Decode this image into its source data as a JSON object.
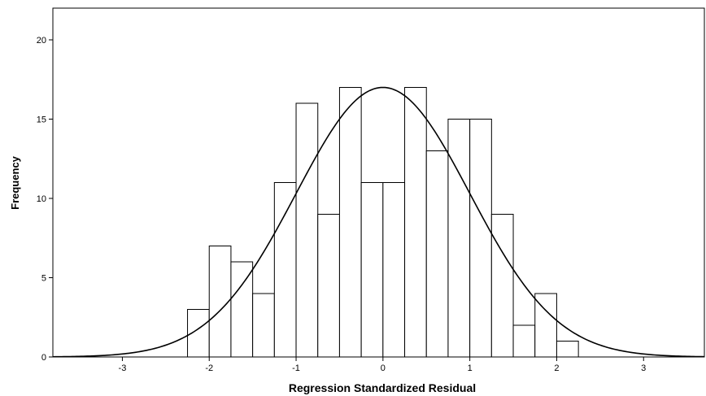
{
  "chart_data": {
    "type": "bar",
    "subtype": "histogram",
    "xlabel": "Regression Standardized Residual",
    "ylabel": "Frequency",
    "xlim": [
      -3.8,
      3.7
    ],
    "ylim": [
      0,
      22
    ],
    "x_ticks": [
      -3,
      -2,
      -1,
      0,
      1,
      2,
      3
    ],
    "x_tick_labels": [
      "-3",
      "-2",
      "-1",
      "0",
      "1",
      "2",
      "3"
    ],
    "y_ticks": [
      0,
      5,
      10,
      15,
      20
    ],
    "y_tick_labels": [
      "0",
      "5",
      "10",
      "15",
      "20"
    ],
    "bin_width": 0.25,
    "bins": [
      {
        "start": -2.25,
        "end": -2.0,
        "count": 3
      },
      {
        "start": -2.0,
        "end": -1.75,
        "count": 7
      },
      {
        "start": -1.75,
        "end": -1.5,
        "count": 6
      },
      {
        "start": -1.5,
        "end": -1.25,
        "count": 4
      },
      {
        "start": -1.25,
        "end": -1.0,
        "count": 11
      },
      {
        "start": -1.0,
        "end": -0.75,
        "count": 16
      },
      {
        "start": -0.75,
        "end": -0.5,
        "count": 9
      },
      {
        "start": -0.5,
        "end": -0.25,
        "count": 17
      },
      {
        "start": -0.25,
        "end": 0.0,
        "count": 11
      },
      {
        "start": 0.0,
        "end": 0.25,
        "count": 11
      },
      {
        "start": 0.25,
        "end": 0.5,
        "count": 17
      },
      {
        "start": 0.5,
        "end": 0.75,
        "count": 13
      },
      {
        "start": 0.75,
        "end": 1.0,
        "count": 15
      },
      {
        "start": 1.0,
        "end": 1.25,
        "count": 15
      },
      {
        "start": 1.25,
        "end": 1.5,
        "count": 9
      },
      {
        "start": 1.5,
        "end": 1.75,
        "count": 2
      },
      {
        "start": 1.75,
        "end": 2.0,
        "count": 4
      },
      {
        "start": 2.0,
        "end": 2.25,
        "count": 1
      }
    ],
    "normal_curve": {
      "mean": 0,
      "sd": 1,
      "peak": 17
    },
    "grid": false,
    "legend": "none",
    "colors": {
      "bar_fill": "#ffffff",
      "bar_stroke": "#000000",
      "curve": "#000000"
    }
  }
}
